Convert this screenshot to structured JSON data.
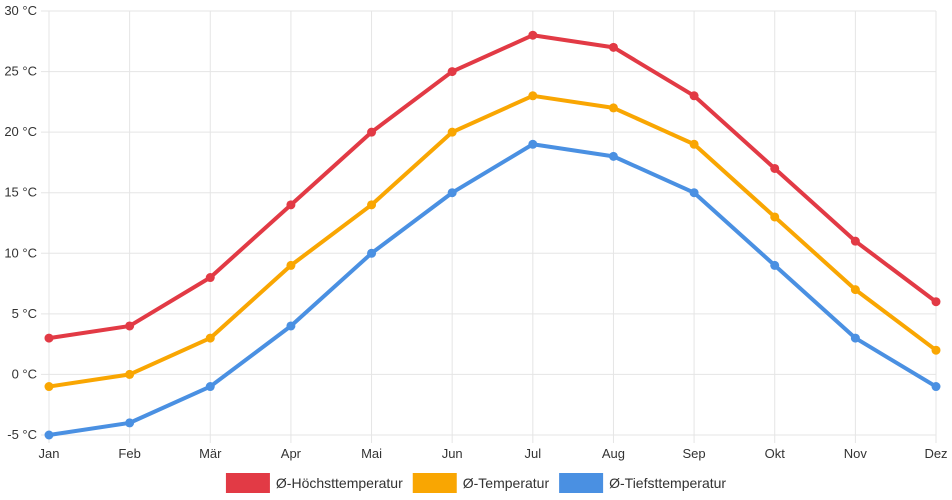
{
  "chart_data": {
    "type": "line",
    "categories": [
      "Jan",
      "Feb",
      "Mär",
      "Apr",
      "Mai",
      "Jun",
      "Jul",
      "Aug",
      "Sep",
      "Okt",
      "Nov",
      "Dez"
    ],
    "series": [
      {
        "name": "Ø-Höchsttemperatur",
        "color": "#e23a45",
        "values": [
          3,
          4,
          8,
          14,
          20,
          25,
          28,
          27,
          23,
          17,
          11,
          6
        ]
      },
      {
        "name": "Ø-Temperatur",
        "color": "#f9a602",
        "values": [
          -1,
          0,
          3,
          9,
          14,
          20,
          23,
          22,
          19,
          13,
          7,
          2
        ]
      },
      {
        "name": "Ø-Tiefsttemperatur",
        "color": "#4a90e2",
        "values": [
          -5,
          -4,
          -1,
          4,
          10,
          15,
          19,
          18,
          15,
          9,
          3,
          -1
        ]
      }
    ],
    "ylim": [
      -5,
      30
    ],
    "y_ticks": [
      -5,
      0,
      5,
      10,
      15,
      20,
      25,
      30
    ],
    "y_unit": "°C",
    "grid": true,
    "legend_position": "bottom-center"
  }
}
